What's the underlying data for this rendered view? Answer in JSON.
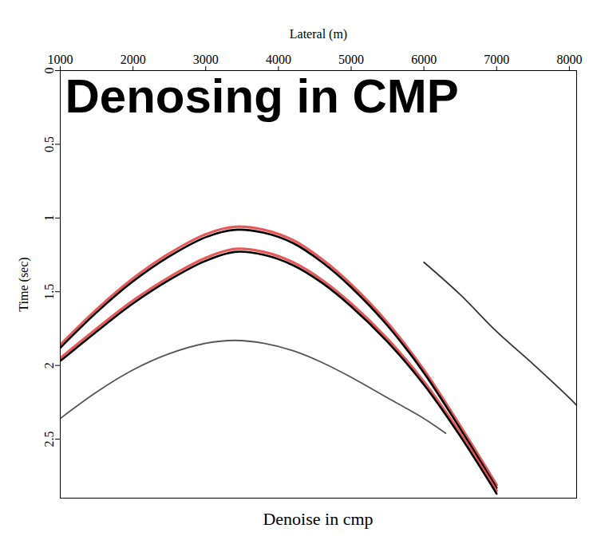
{
  "chart_data": {
    "type": "line",
    "title": "Denosing in CMP",
    "caption": "Denoise in cmp",
    "x_label": "Lateral (m)",
    "y_label": "Time (sec)",
    "xlim": [
      1000,
      8100
    ],
    "xticks": [
      1000,
      2000,
      3000,
      4000,
      5000,
      6000,
      7000,
      8000
    ],
    "ylim": [
      0,
      2.9
    ],
    "yticks": [
      0,
      0.5,
      1,
      1.5,
      2,
      2.5
    ],
    "grid": false,
    "series": [
      {
        "color": "#e03c3c",
        "x": [
          1000,
          1500,
          2000,
          2500,
          3000,
          3400,
          3800,
          4200,
          4600,
          5000,
          5500,
          6000,
          6500,
          7000
        ],
        "values": [
          1.86,
          1.62,
          1.41,
          1.24,
          1.11,
          1.06,
          1.08,
          1.15,
          1.28,
          1.45,
          1.71,
          2.03,
          2.41,
          2.81
        ]
      },
      {
        "color": "#000000",
        "x": [
          1000,
          1500,
          2000,
          2500,
          3000,
          3400,
          3800,
          4200,
          4600,
          5000,
          5500,
          6000,
          6500,
          7000
        ],
        "values": [
          1.88,
          1.64,
          1.43,
          1.26,
          1.13,
          1.08,
          1.1,
          1.17,
          1.3,
          1.47,
          1.73,
          2.05,
          2.43,
          2.83
        ]
      },
      {
        "color": "#e03c3c",
        "x": [
          1000,
          1500,
          2000,
          2500,
          3000,
          3400,
          3800,
          4200,
          4600,
          5000,
          5500,
          6000,
          6500,
          7000
        ],
        "values": [
          1.95,
          1.75,
          1.56,
          1.4,
          1.27,
          1.21,
          1.23,
          1.3,
          1.42,
          1.58,
          1.82,
          2.11,
          2.46,
          2.85
        ]
      },
      {
        "color": "#000000",
        "x": [
          1000,
          1500,
          2000,
          2500,
          3000,
          3400,
          3800,
          4200,
          4600,
          5000,
          5500,
          6000,
          6500,
          7000
        ],
        "values": [
          1.97,
          1.77,
          1.58,
          1.42,
          1.29,
          1.23,
          1.25,
          1.32,
          1.44,
          1.6,
          1.84,
          2.13,
          2.48,
          2.87
        ]
      },
      {
        "color": "#555555",
        "x": [
          1000,
          1500,
          2000,
          2500,
          3000,
          3400,
          3800,
          4200,
          4600,
          5000,
          5500,
          6000,
          6300
        ],
        "values": [
          2.36,
          2.18,
          2.03,
          1.92,
          1.85,
          1.83,
          1.85,
          1.9,
          1.98,
          2.08,
          2.22,
          2.36,
          2.46
        ]
      },
      {
        "color": "#333333",
        "x": [
          6000,
          6500,
          7000,
          7500,
          8000,
          8100
        ],
        "values": [
          1.3,
          1.52,
          1.77,
          1.99,
          2.22,
          2.27
        ]
      }
    ]
  }
}
